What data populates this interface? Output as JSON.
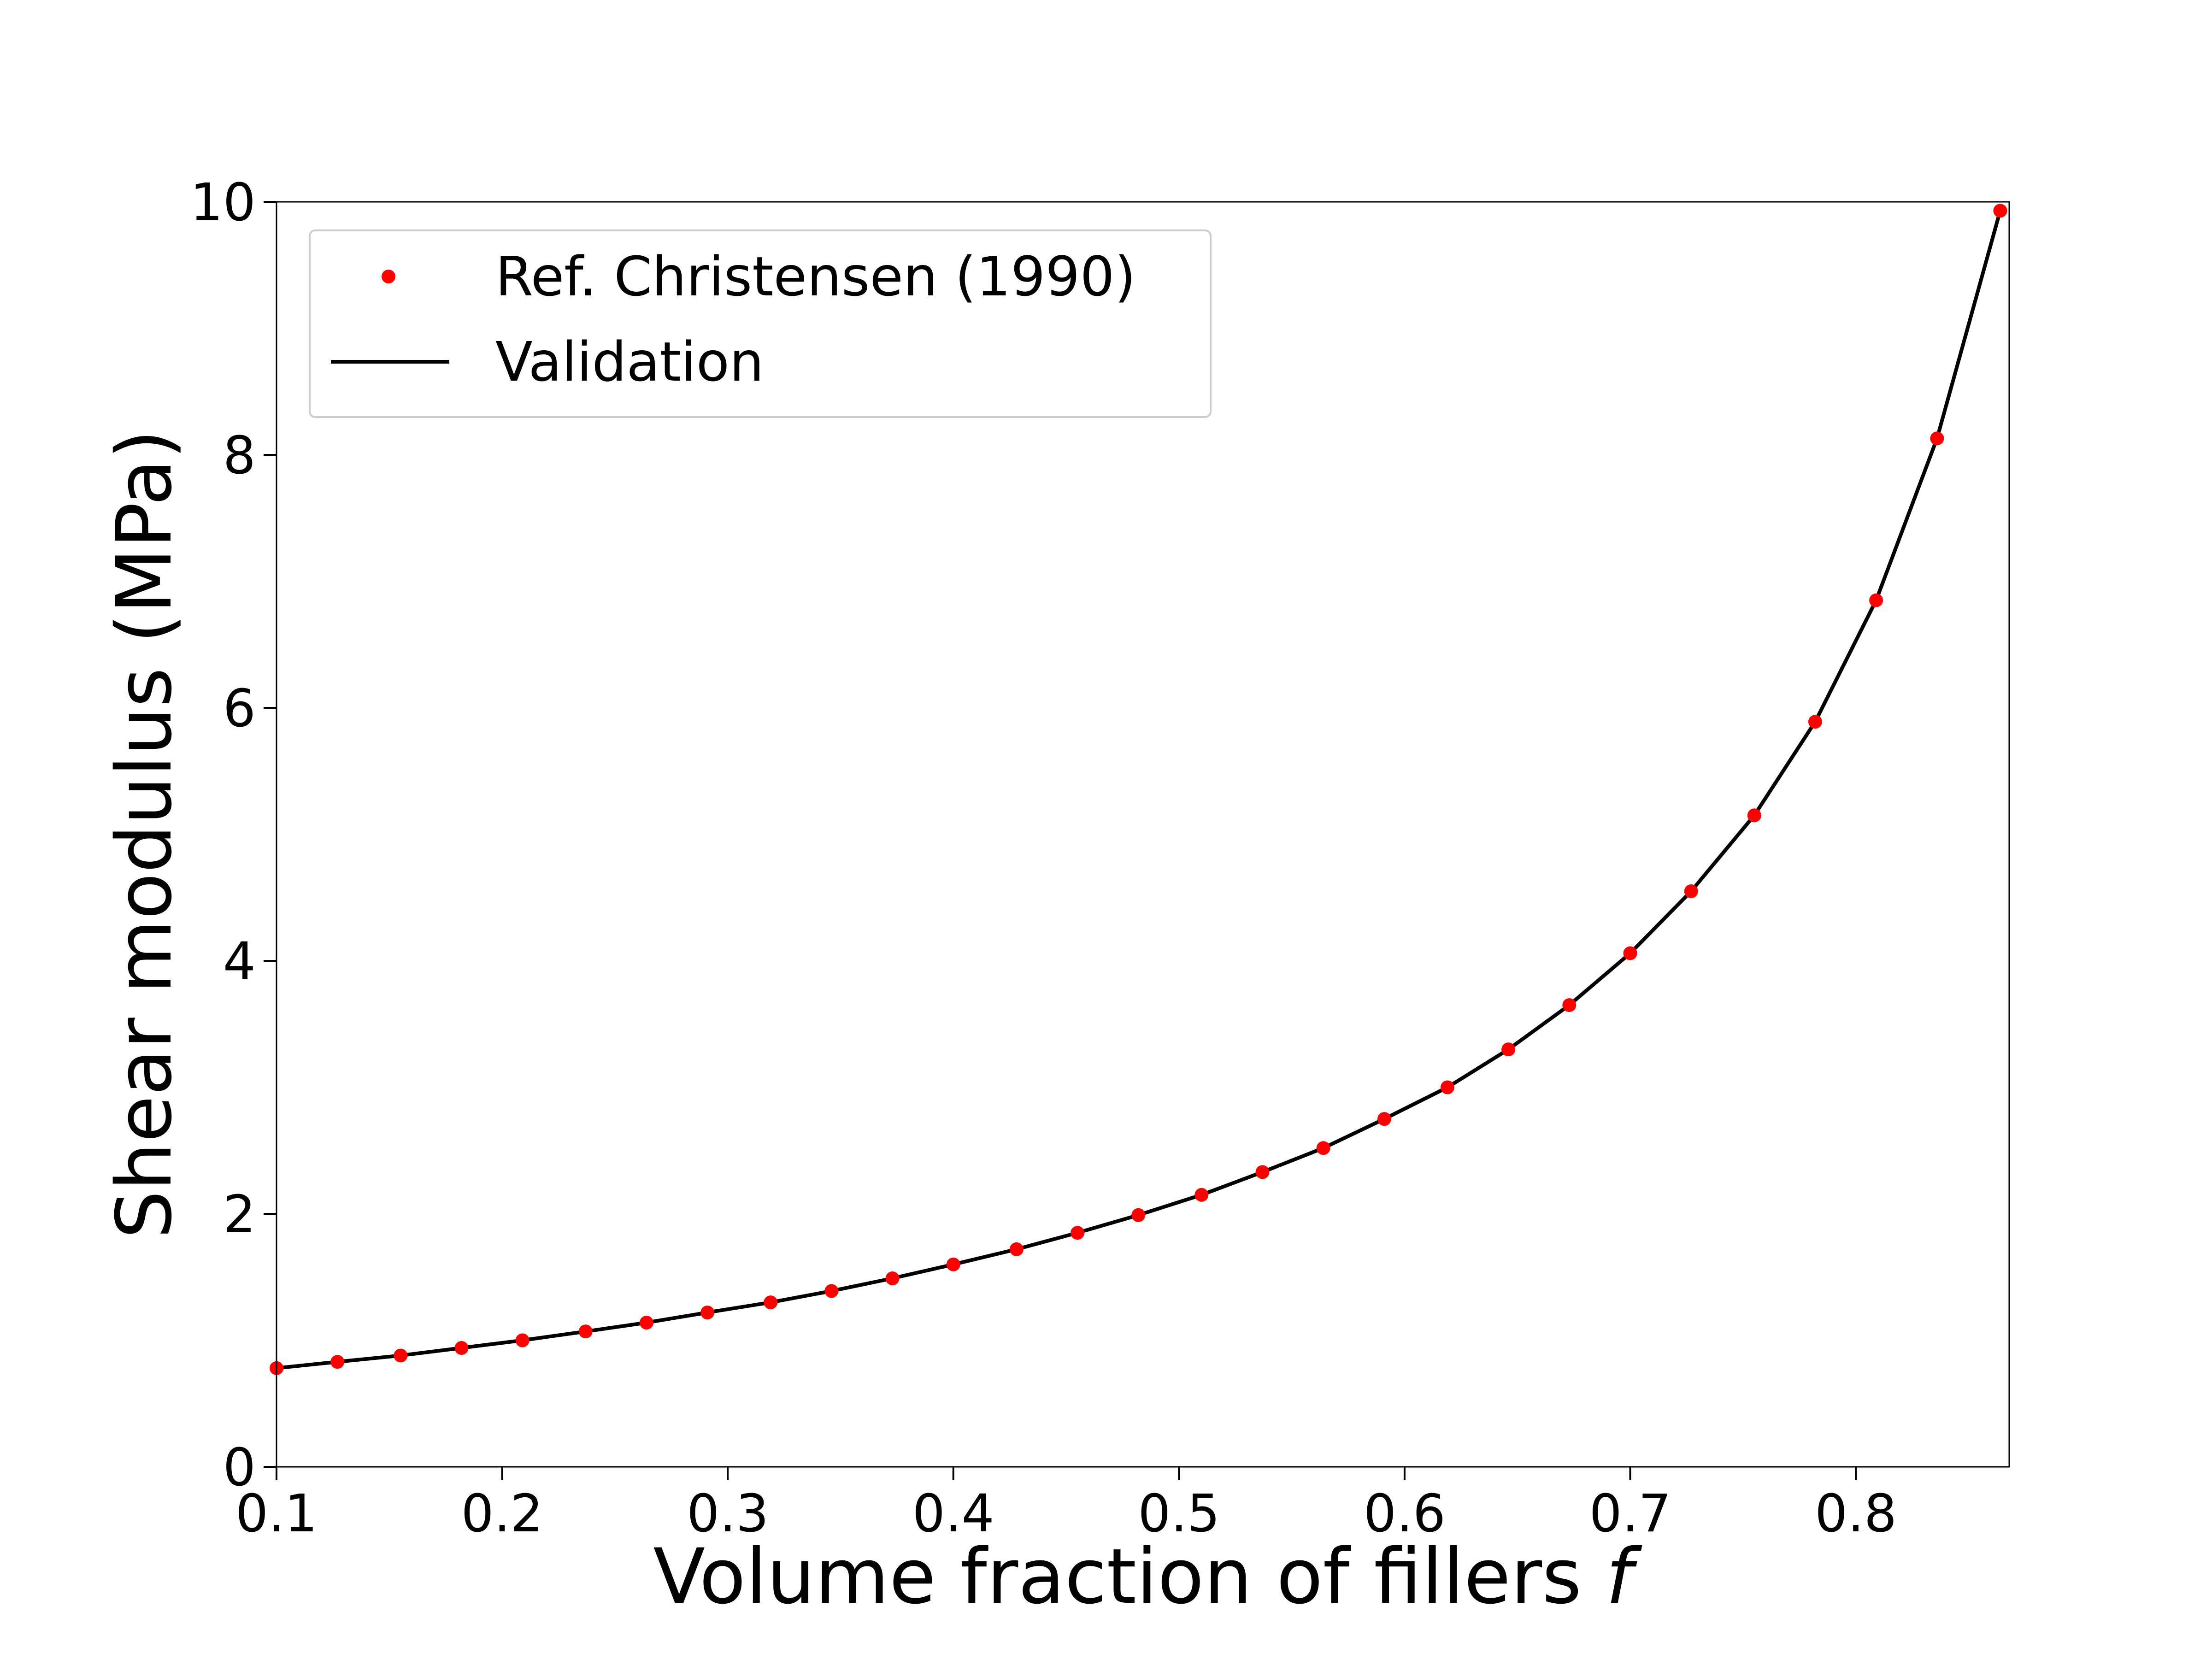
{
  "chart_data": {
    "type": "line",
    "title": "",
    "xlabel": "Volume fraction of fillers",
    "xlabel_var": "f",
    "ylabel": "Shear modulus (MPa)",
    "xlim": [
      0.1,
      0.868
    ],
    "ylim": [
      0,
      10
    ],
    "xticks": [
      "0.1",
      "0.2",
      "0.3",
      "0.4",
      "0.5",
      "0.6",
      "0.7",
      "0.8"
    ],
    "yticks": [
      "0",
      "2",
      "4",
      "6",
      "8",
      "10"
    ],
    "grid": false,
    "legend_position": "top-left",
    "series": [
      {
        "name": "Ref. Christensen (1990)",
        "style": "markers",
        "color": "#ff0000",
        "x": [
          0.1,
          0.127,
          0.155,
          0.182,
          0.209,
          0.237,
          0.264,
          0.291,
          0.319,
          0.346,
          0.373,
          0.4,
          0.428,
          0.455,
          0.482,
          0.51,
          0.537,
          0.564,
          0.591,
          0.619,
          0.646,
          0.673,
          0.7,
          0.727,
          0.755,
          0.782,
          0.809,
          0.836,
          0.864
        ],
        "y": [
          0.78,
          0.83,
          0.88,
          0.94,
          1.0,
          1.07,
          1.14,
          1.22,
          1.3,
          1.39,
          1.49,
          1.6,
          1.72,
          1.85,
          1.99,
          2.15,
          2.33,
          2.52,
          2.75,
          3.0,
          3.3,
          3.65,
          4.06,
          4.55,
          5.15,
          5.89,
          6.85,
          8.13,
          9.93
        ]
      },
      {
        "name": "Validation",
        "style": "line",
        "color": "#000000",
        "x": [
          0.1,
          0.127,
          0.155,
          0.182,
          0.209,
          0.237,
          0.264,
          0.291,
          0.319,
          0.346,
          0.373,
          0.4,
          0.428,
          0.455,
          0.482,
          0.51,
          0.537,
          0.564,
          0.591,
          0.619,
          0.646,
          0.673,
          0.7,
          0.727,
          0.755,
          0.782,
          0.809,
          0.836,
          0.864
        ],
        "y": [
          0.78,
          0.83,
          0.88,
          0.94,
          1.0,
          1.07,
          1.14,
          1.22,
          1.3,
          1.39,
          1.49,
          1.6,
          1.72,
          1.85,
          1.99,
          2.15,
          2.33,
          2.52,
          2.75,
          3.0,
          3.3,
          3.65,
          4.06,
          4.55,
          5.15,
          5.89,
          6.85,
          8.13,
          9.93
        ]
      }
    ]
  }
}
